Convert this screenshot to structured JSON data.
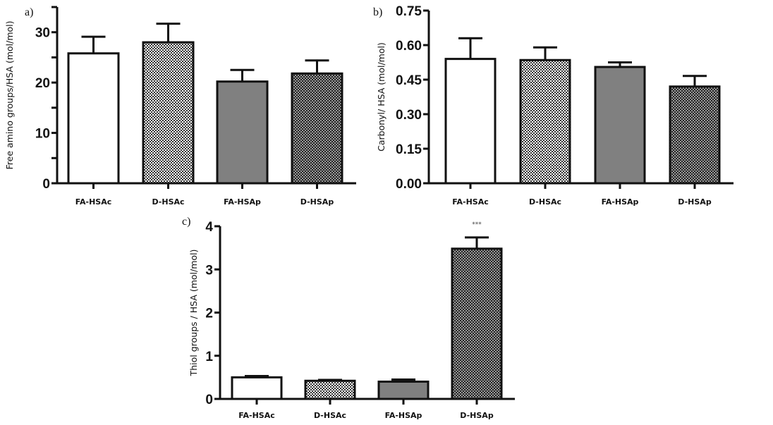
{
  "chart_data": [
    {
      "type": "bar",
      "panel_label": "a)",
      "ylabel": "Free amino groups/HSA (mol/mol)",
      "categories": [
        "FA-HSAc",
        "D-HSAc",
        "FA-HSAp",
        "D-HSAp"
      ],
      "values": [
        25.8,
        28.0,
        20.2,
        21.8
      ],
      "errors": [
        3.3,
        3.7,
        2.3,
        2.6
      ],
      "ylim": [
        0,
        35
      ],
      "yticks": [
        "0",
        "10",
        "20",
        "30"
      ],
      "minor_ticks": [
        5,
        15,
        25,
        35
      ],
      "grid": false
    },
    {
      "type": "bar",
      "panel_label": "b)",
      "ylabel": "Carbonyl/ HSA (mol/mol)",
      "categories": [
        "FA-HSAc",
        "D-HSAc",
        "FA-HSAp",
        "D-HSAp"
      ],
      "values": [
        0.54,
        0.535,
        0.505,
        0.42
      ],
      "errors": [
        0.09,
        0.055,
        0.02,
        0.046
      ],
      "ylim": [
        0,
        0.75
      ],
      "yticks": [
        "0.00",
        "0.15",
        "0.30",
        "0.45",
        "0.60",
        "0.75"
      ],
      "minor_ticks": [],
      "grid": false
    },
    {
      "type": "bar",
      "panel_label": "c)",
      "ylabel": "Thiol groups / HSA (mol/mol)",
      "categories": [
        "FA-HSAc",
        "D-HSAc",
        "FA-HSAp",
        "D-HSAp"
      ],
      "values": [
        0.5,
        0.42,
        0.4,
        3.48
      ],
      "errors": [
        0.03,
        0.02,
        0.05,
        0.26
      ],
      "ylim": [
        0,
        4
      ],
      "yticks": [
        "0",
        "1",
        "2",
        "3",
        "4"
      ],
      "minor_ticks": [],
      "annotations": [
        "",
        "",
        "",
        "***"
      ],
      "grid": false
    }
  ],
  "fills": [
    "white",
    "light-checker",
    "#808080",
    "dark-checker"
  ]
}
